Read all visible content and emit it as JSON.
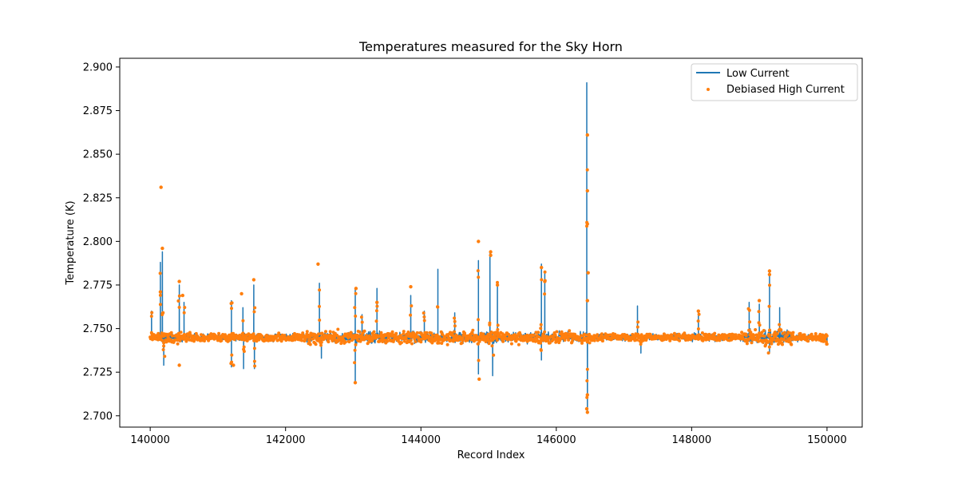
{
  "chart_data": {
    "type": "line",
    "title": "Temperatures measured for the Sky Horn",
    "xlabel": "Record Index",
    "ylabel": "Temperature (K)",
    "xlim": [
      139550,
      150520
    ],
    "ylim": [
      2.6935,
      2.905
    ],
    "xticks": [
      140000,
      142000,
      144000,
      146000,
      148000,
      150000
    ],
    "yticks": [
      2.7,
      2.725,
      2.75,
      2.775,
      2.8,
      2.825,
      2.85,
      2.875,
      2.9
    ],
    "ytick_labels": [
      "2.700",
      "2.725",
      "2.750",
      "2.775",
      "2.800",
      "2.825",
      "2.850",
      "2.875",
      "2.900"
    ],
    "legend_position": "upper right",
    "baseline_level": 2.745,
    "x_range": [
      140000,
      150000
    ],
    "series": [
      {
        "name": "Low Current",
        "style": "line",
        "color": "#1f77b4",
        "spikes": [
          {
            "x": 140020,
            "y": 2.76
          },
          {
            "x": 140150,
            "y": 2.788
          },
          {
            "x": 140180,
            "y": 2.794
          },
          {
            "x": 140200,
            "y": 2.729
          },
          {
            "x": 140430,
            "y": 2.775
          },
          {
            "x": 140500,
            "y": 2.765
          },
          {
            "x": 141200,
            "y": 2.766
          },
          {
            "x": 141200,
            "y": 2.728
          },
          {
            "x": 141370,
            "y": 2.762
          },
          {
            "x": 141380,
            "y": 2.727
          },
          {
            "x": 141530,
            "y": 2.775
          },
          {
            "x": 141540,
            "y": 2.727
          },
          {
            "x": 142500,
            "y": 2.776
          },
          {
            "x": 142530,
            "y": 2.733
          },
          {
            "x": 143030,
            "y": 2.773
          },
          {
            "x": 143030,
            "y": 2.72
          },
          {
            "x": 143130,
            "y": 2.758
          },
          {
            "x": 143350,
            "y": 2.773
          },
          {
            "x": 143850,
            "y": 2.769
          },
          {
            "x": 144050,
            "y": 2.76
          },
          {
            "x": 144250,
            "y": 2.784
          },
          {
            "x": 144500,
            "y": 2.759
          },
          {
            "x": 144850,
            "y": 2.789
          },
          {
            "x": 144850,
            "y": 2.724
          },
          {
            "x": 145020,
            "y": 2.793
          },
          {
            "x": 145060,
            "y": 2.723
          },
          {
            "x": 145130,
            "y": 2.777
          },
          {
            "x": 145780,
            "y": 2.787
          },
          {
            "x": 145780,
            "y": 2.732
          },
          {
            "x": 145830,
            "y": 2.783
          },
          {
            "x": 146450,
            "y": 2.891
          },
          {
            "x": 146460,
            "y": 2.702
          },
          {
            "x": 147200,
            "y": 2.763
          },
          {
            "x": 147250,
            "y": 2.736
          },
          {
            "x": 148100,
            "y": 2.759
          },
          {
            "x": 148850,
            "y": 2.765
          },
          {
            "x": 149000,
            "y": 2.764
          },
          {
            "x": 149150,
            "y": 2.782
          },
          {
            "x": 149150,
            "y": 2.736
          },
          {
            "x": 149300,
            "y": 2.762
          },
          {
            "x": 150000,
            "y": 2.741
          }
        ]
      },
      {
        "name": "Debiased High Current",
        "style": "scatter",
        "color": "#ff7f0e",
        "outliers": [
          {
            "x": 140160,
            "y": 2.831
          },
          {
            "x": 140180,
            "y": 2.796
          },
          {
            "x": 140150,
            "y": 2.771
          },
          {
            "x": 140430,
            "y": 2.777
          },
          {
            "x": 140430,
            "y": 2.729
          },
          {
            "x": 140480,
            "y": 2.769
          },
          {
            "x": 141230,
            "y": 2.729
          },
          {
            "x": 141530,
            "y": 2.778
          },
          {
            "x": 141350,
            "y": 2.77
          },
          {
            "x": 142480,
            "y": 2.787
          },
          {
            "x": 143030,
            "y": 2.719
          },
          {
            "x": 143040,
            "y": 2.773
          },
          {
            "x": 143350,
            "y": 2.765
          },
          {
            "x": 143850,
            "y": 2.774
          },
          {
            "x": 144850,
            "y": 2.8
          },
          {
            "x": 144860,
            "y": 2.721
          },
          {
            "x": 145030,
            "y": 2.794
          },
          {
            "x": 145030,
            "y": 2.792
          },
          {
            "x": 145130,
            "y": 2.775
          },
          {
            "x": 145780,
            "y": 2.785
          },
          {
            "x": 145830,
            "y": 2.777
          },
          {
            "x": 146460,
            "y": 2.861
          },
          {
            "x": 146460,
            "y": 2.829
          },
          {
            "x": 146460,
            "y": 2.81
          },
          {
            "x": 146470,
            "y": 2.782
          },
          {
            "x": 146460,
            "y": 2.766
          },
          {
            "x": 146460,
            "y": 2.712
          },
          {
            "x": 146450,
            "y": 2.704
          },
          {
            "x": 146460,
            "y": 2.702
          },
          {
            "x": 148100,
            "y": 2.76
          },
          {
            "x": 149150,
            "y": 2.783
          },
          {
            "x": 149150,
            "y": 2.781
          },
          {
            "x": 149000,
            "y": 2.766
          }
        ]
      }
    ]
  }
}
